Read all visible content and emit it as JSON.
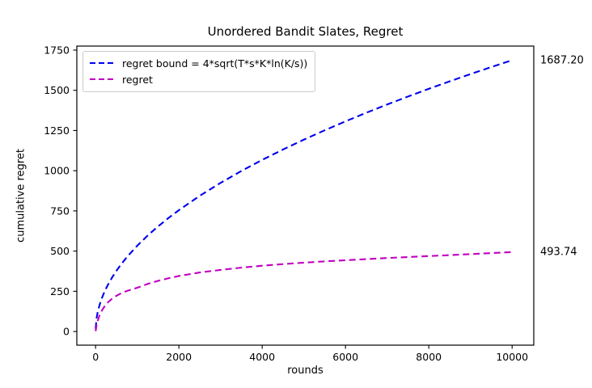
{
  "chart_data": {
    "type": "line",
    "title": "Unordered Bandit Slates, Regret",
    "xlabel": "rounds",
    "ylabel": "cumulative regret",
    "xlim": [
      -450,
      10520
    ],
    "ylim": [
      -85,
      1775
    ],
    "xticks": [
      0,
      2000,
      4000,
      6000,
      8000,
      10000
    ],
    "yticks": [
      0,
      250,
      500,
      750,
      1000,
      1250,
      1500,
      1750
    ],
    "grid": false,
    "legend_position": "upper-left",
    "line_style": "dashed",
    "x": [
      1,
      25,
      50,
      100,
      150,
      200,
      250,
      300,
      400,
      500,
      600,
      750,
      1000,
      1250,
      1500,
      1750,
      2000,
      2500,
      3000,
      3500,
      4000,
      4500,
      5000,
      5500,
      6000,
      6500,
      7000,
      7500,
      8000,
      8500,
      9000,
      9500,
      10000
    ],
    "series": [
      {
        "name": "regret bound = 4*sqrt(T*s*K*ln(K/s))",
        "color": "#0000ee",
        "values": [
          16.9,
          84.4,
          119.3,
          168.7,
          206.6,
          238.6,
          266.8,
          292.2,
          337.4,
          377.3,
          413.3,
          462.1,
          533.6,
          596.6,
          653.5,
          705.8,
          754.5,
          843.6,
          924.1,
          998.2,
          1067.1,
          1131.9,
          1193.1,
          1251.3,
          1306.9,
          1360.3,
          1411.7,
          1461.2,
          1509.2,
          1555.6,
          1600.8,
          1644.7,
          1687.2
        ]
      },
      {
        "name": "regret",
        "color": "#c000c0",
        "values": [
          2,
          40,
          65,
          105,
          130,
          150,
          168,
          182,
          205,
          222,
          236,
          252,
          272,
          296,
          315,
          331,
          345,
          367,
          383,
          397,
          409,
          419,
          428,
          436,
          443,
          450,
          457,
          463,
          469,
          475,
          481,
          487.5,
          493.74
        ]
      }
    ],
    "annotations": [
      {
        "text": "1687.20",
        "x": 10000,
        "y": 1687.2
      },
      {
        "text": "493.74",
        "x": 10000,
        "y": 493.74
      }
    ]
  }
}
